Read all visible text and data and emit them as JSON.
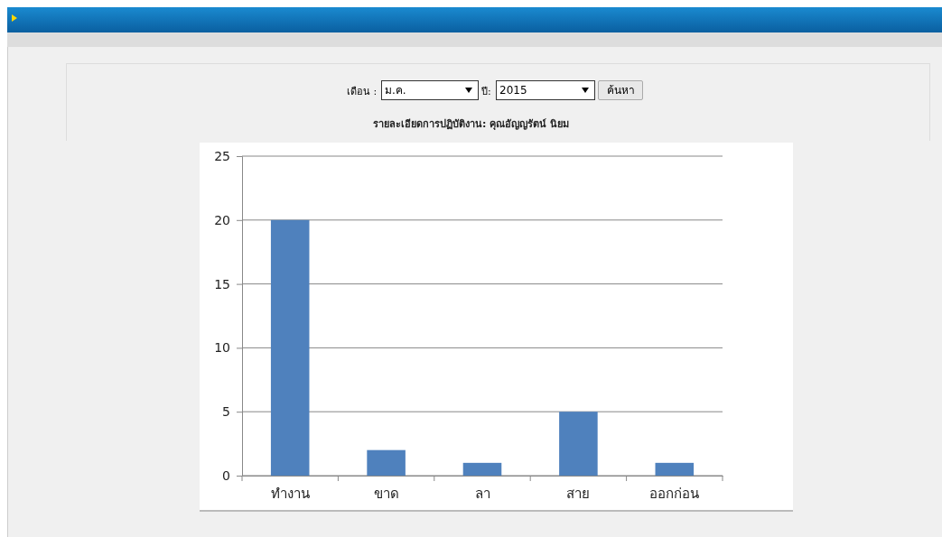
{
  "chart_data": {
    "type": "bar",
    "title": "รายละเอียดการปฏิบัติงาน: คุณอัญญรัตน์ นิยม",
    "annotations": [
      "เดือน :",
      "ม.ค.",
      "ปี:",
      "2015",
      "ค้นหา"
    ],
    "categories": [
      "ทำงาน",
      "ขาด",
      "ลา",
      "สาย",
      "ออกก่อน"
    ],
    "values": [
      20,
      2,
      1,
      5,
      1
    ],
    "color": "#4f81bd",
    "ylim": [
      0,
      25
    ],
    "yticks": [
      0,
      5,
      10,
      15,
      20,
      25
    ],
    "grid": "y"
  }
}
